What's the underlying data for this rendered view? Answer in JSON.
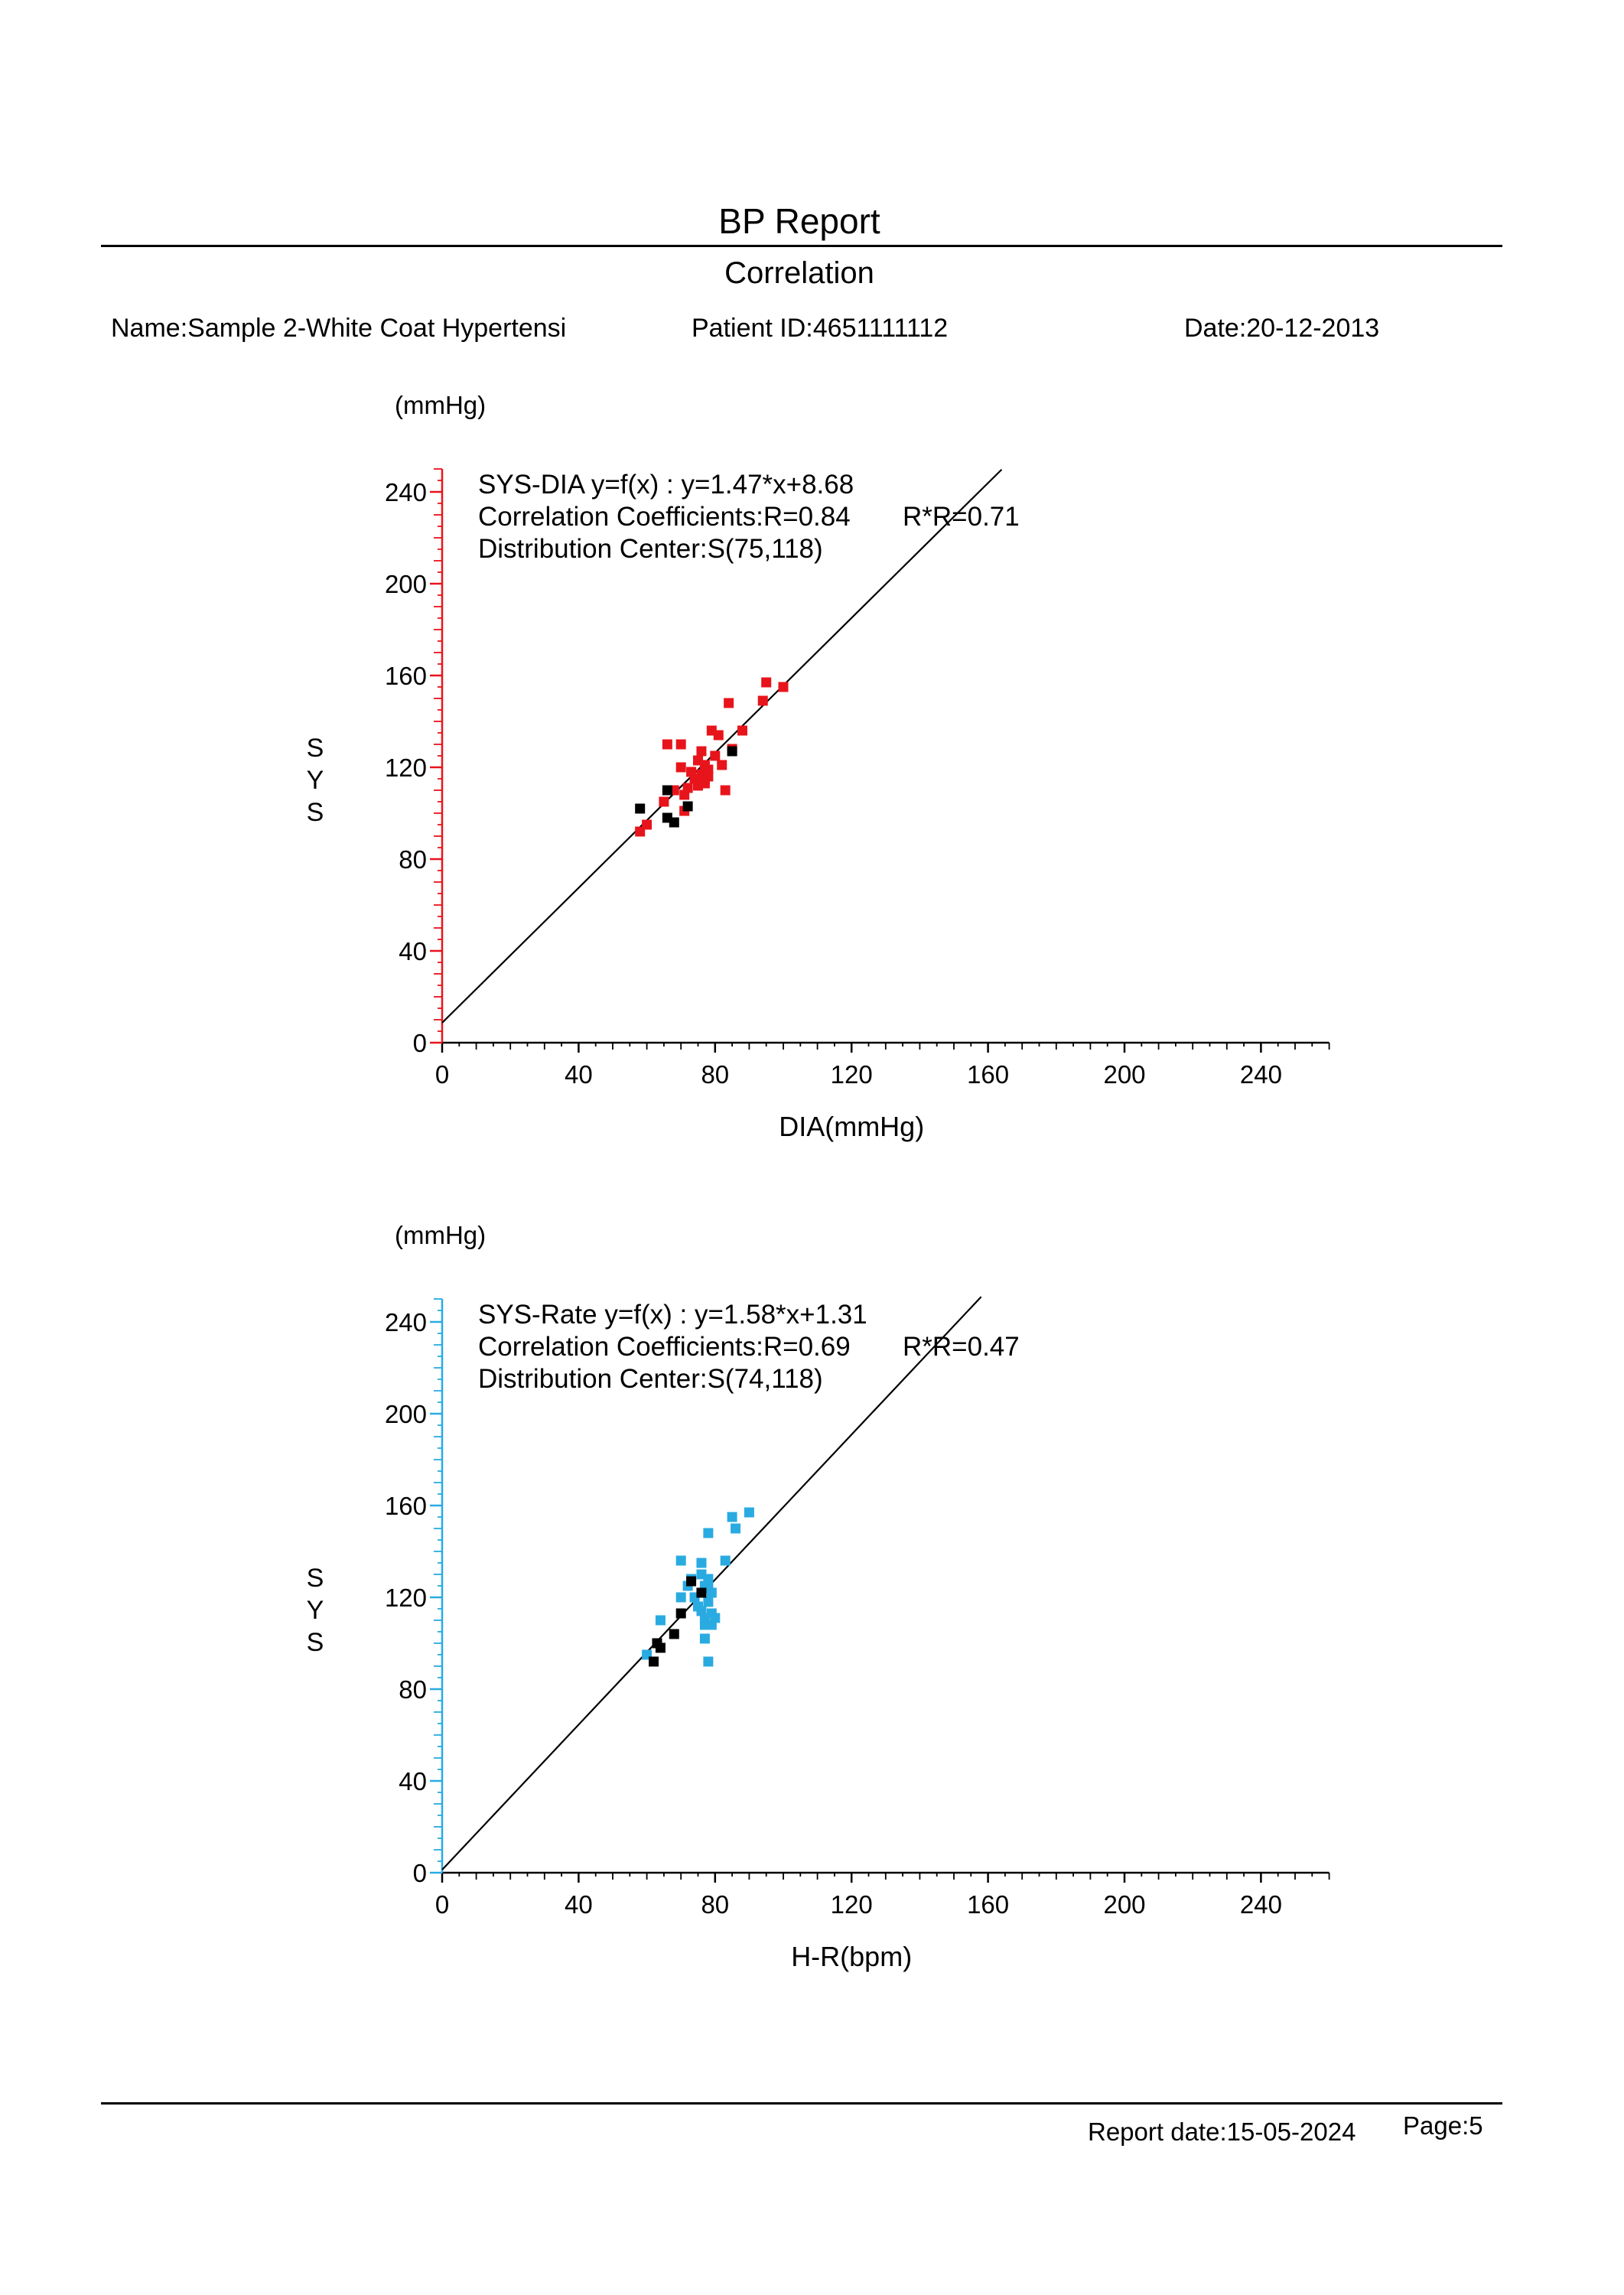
{
  "header": {
    "title": "BP Report",
    "subtitle": "Correlation",
    "name": "Name:Sample 2-White Coat Hypertensi",
    "patient_id": "Patient ID:4651111112",
    "date": "Date:20-12-2013"
  },
  "footer": {
    "report_date": "Report date:15-05-2024",
    "page": "Page:5"
  },
  "chart_data": [
    {
      "type": "scatter",
      "unit_label": "(mmHg)",
      "xlabel": "DIA(mmHg)",
      "ylabel": "SYS",
      "xlim": [
        0,
        260
      ],
      "ylim": [
        0,
        250
      ],
      "x_ticks": [
        "0",
        "40",
        "80",
        "120",
        "160",
        "200",
        "240"
      ],
      "y_ticks": [
        "0",
        "40",
        "80",
        "120",
        "160",
        "200",
        "240"
      ],
      "axis_color": "#e8141b",
      "annotation_line1": "SYS-DIA  y=f(x) : y=1.47*x+8.68",
      "annotation_line2": "Correlation Coefficients:R=0.84",
      "annotation_r2": "R*R=0.71",
      "annotation_line3": "Distribution Center:S(75,118)",
      "regression": {
        "slope": 1.47,
        "intercept": 8.68,
        "x_end": 164
      },
      "series": [
        {
          "color": "#e8141b",
          "points": [
            [
              58,
              92
            ],
            [
              60,
              95
            ],
            [
              65,
              105
            ],
            [
              66,
              130
            ],
            [
              68,
              110
            ],
            [
              70,
              130
            ],
            [
              70,
              120
            ],
            [
              71,
              101
            ],
            [
              71,
              108
            ],
            [
              72,
              111
            ],
            [
              73,
              118
            ],
            [
              74,
              115
            ],
            [
              75,
              123
            ],
            [
              75,
              112
            ],
            [
              76,
              117
            ],
            [
              76,
              127
            ],
            [
              76,
              114
            ],
            [
              77,
              121
            ],
            [
              77,
              115
            ],
            [
              77,
              113
            ],
            [
              78,
              119
            ],
            [
              78,
              116
            ],
            [
              79,
              136
            ],
            [
              80,
              125
            ],
            [
              81,
              134
            ],
            [
              82,
              121
            ],
            [
              83,
              110
            ],
            [
              84,
              148
            ],
            [
              85,
              128
            ],
            [
              88,
              136
            ],
            [
              94,
              149
            ],
            [
              95,
              157
            ],
            [
              100,
              155
            ]
          ]
        },
        {
          "color": "#000000",
          "points": [
            [
              58,
              102
            ],
            [
              66,
              110
            ],
            [
              66,
              98
            ],
            [
              68,
              96
            ],
            [
              72,
              103
            ],
            [
              85,
              127
            ]
          ]
        }
      ]
    },
    {
      "type": "scatter",
      "unit_label": "(mmHg)",
      "xlabel": "H-R(bpm)",
      "ylabel": "SYS",
      "xlim": [
        0,
        260
      ],
      "ylim": [
        0,
        250
      ],
      "x_ticks": [
        "0",
        "40",
        "80",
        "120",
        "160",
        "200",
        "240"
      ],
      "y_ticks": [
        "0",
        "40",
        "80",
        "120",
        "160",
        "200",
        "240"
      ],
      "axis_color": "#29abe2",
      "annotation_line1": "SYS-Rate  y=f(x) : y=1.58*x+1.31",
      "annotation_line2": "Correlation Coefficients:R=0.69",
      "annotation_r2": "R*R=0.47",
      "annotation_line3": "Distribution Center:S(74,118)",
      "regression": {
        "slope": 1.58,
        "intercept": 1.31,
        "x_end": 158
      },
      "series": [
        {
          "color": "#29abe2",
          "points": [
            [
              60,
              95
            ],
            [
              64,
              110
            ],
            [
              70,
              136
            ],
            [
              70,
              120
            ],
            [
              72,
              125
            ],
            [
              73,
              128
            ],
            [
              74,
              120
            ],
            [
              75,
              116
            ],
            [
              76,
              135
            ],
            [
              76,
              130
            ],
            [
              76,
              114
            ],
            [
              77,
              111
            ],
            [
              77,
              102
            ],
            [
              77,
              108
            ],
            [
              77,
              125
            ],
            [
              78,
              124
            ],
            [
              78,
              118
            ],
            [
              78,
              148
            ],
            [
              78,
              92
            ],
            [
              78,
              128
            ],
            [
              79,
              122
            ],
            [
              79,
              113
            ],
            [
              79,
              108
            ],
            [
              80,
              111
            ],
            [
              83,
              136
            ],
            [
              85,
              155
            ],
            [
              86,
              150
            ],
            [
              90,
              157
            ]
          ]
        },
        {
          "color": "#000000",
          "points": [
            [
              62,
              92
            ],
            [
              63,
              100
            ],
            [
              64,
              98
            ],
            [
              68,
              104
            ],
            [
              70,
              113
            ],
            [
              73,
              127
            ],
            [
              76,
              122
            ]
          ]
        }
      ]
    }
  ]
}
